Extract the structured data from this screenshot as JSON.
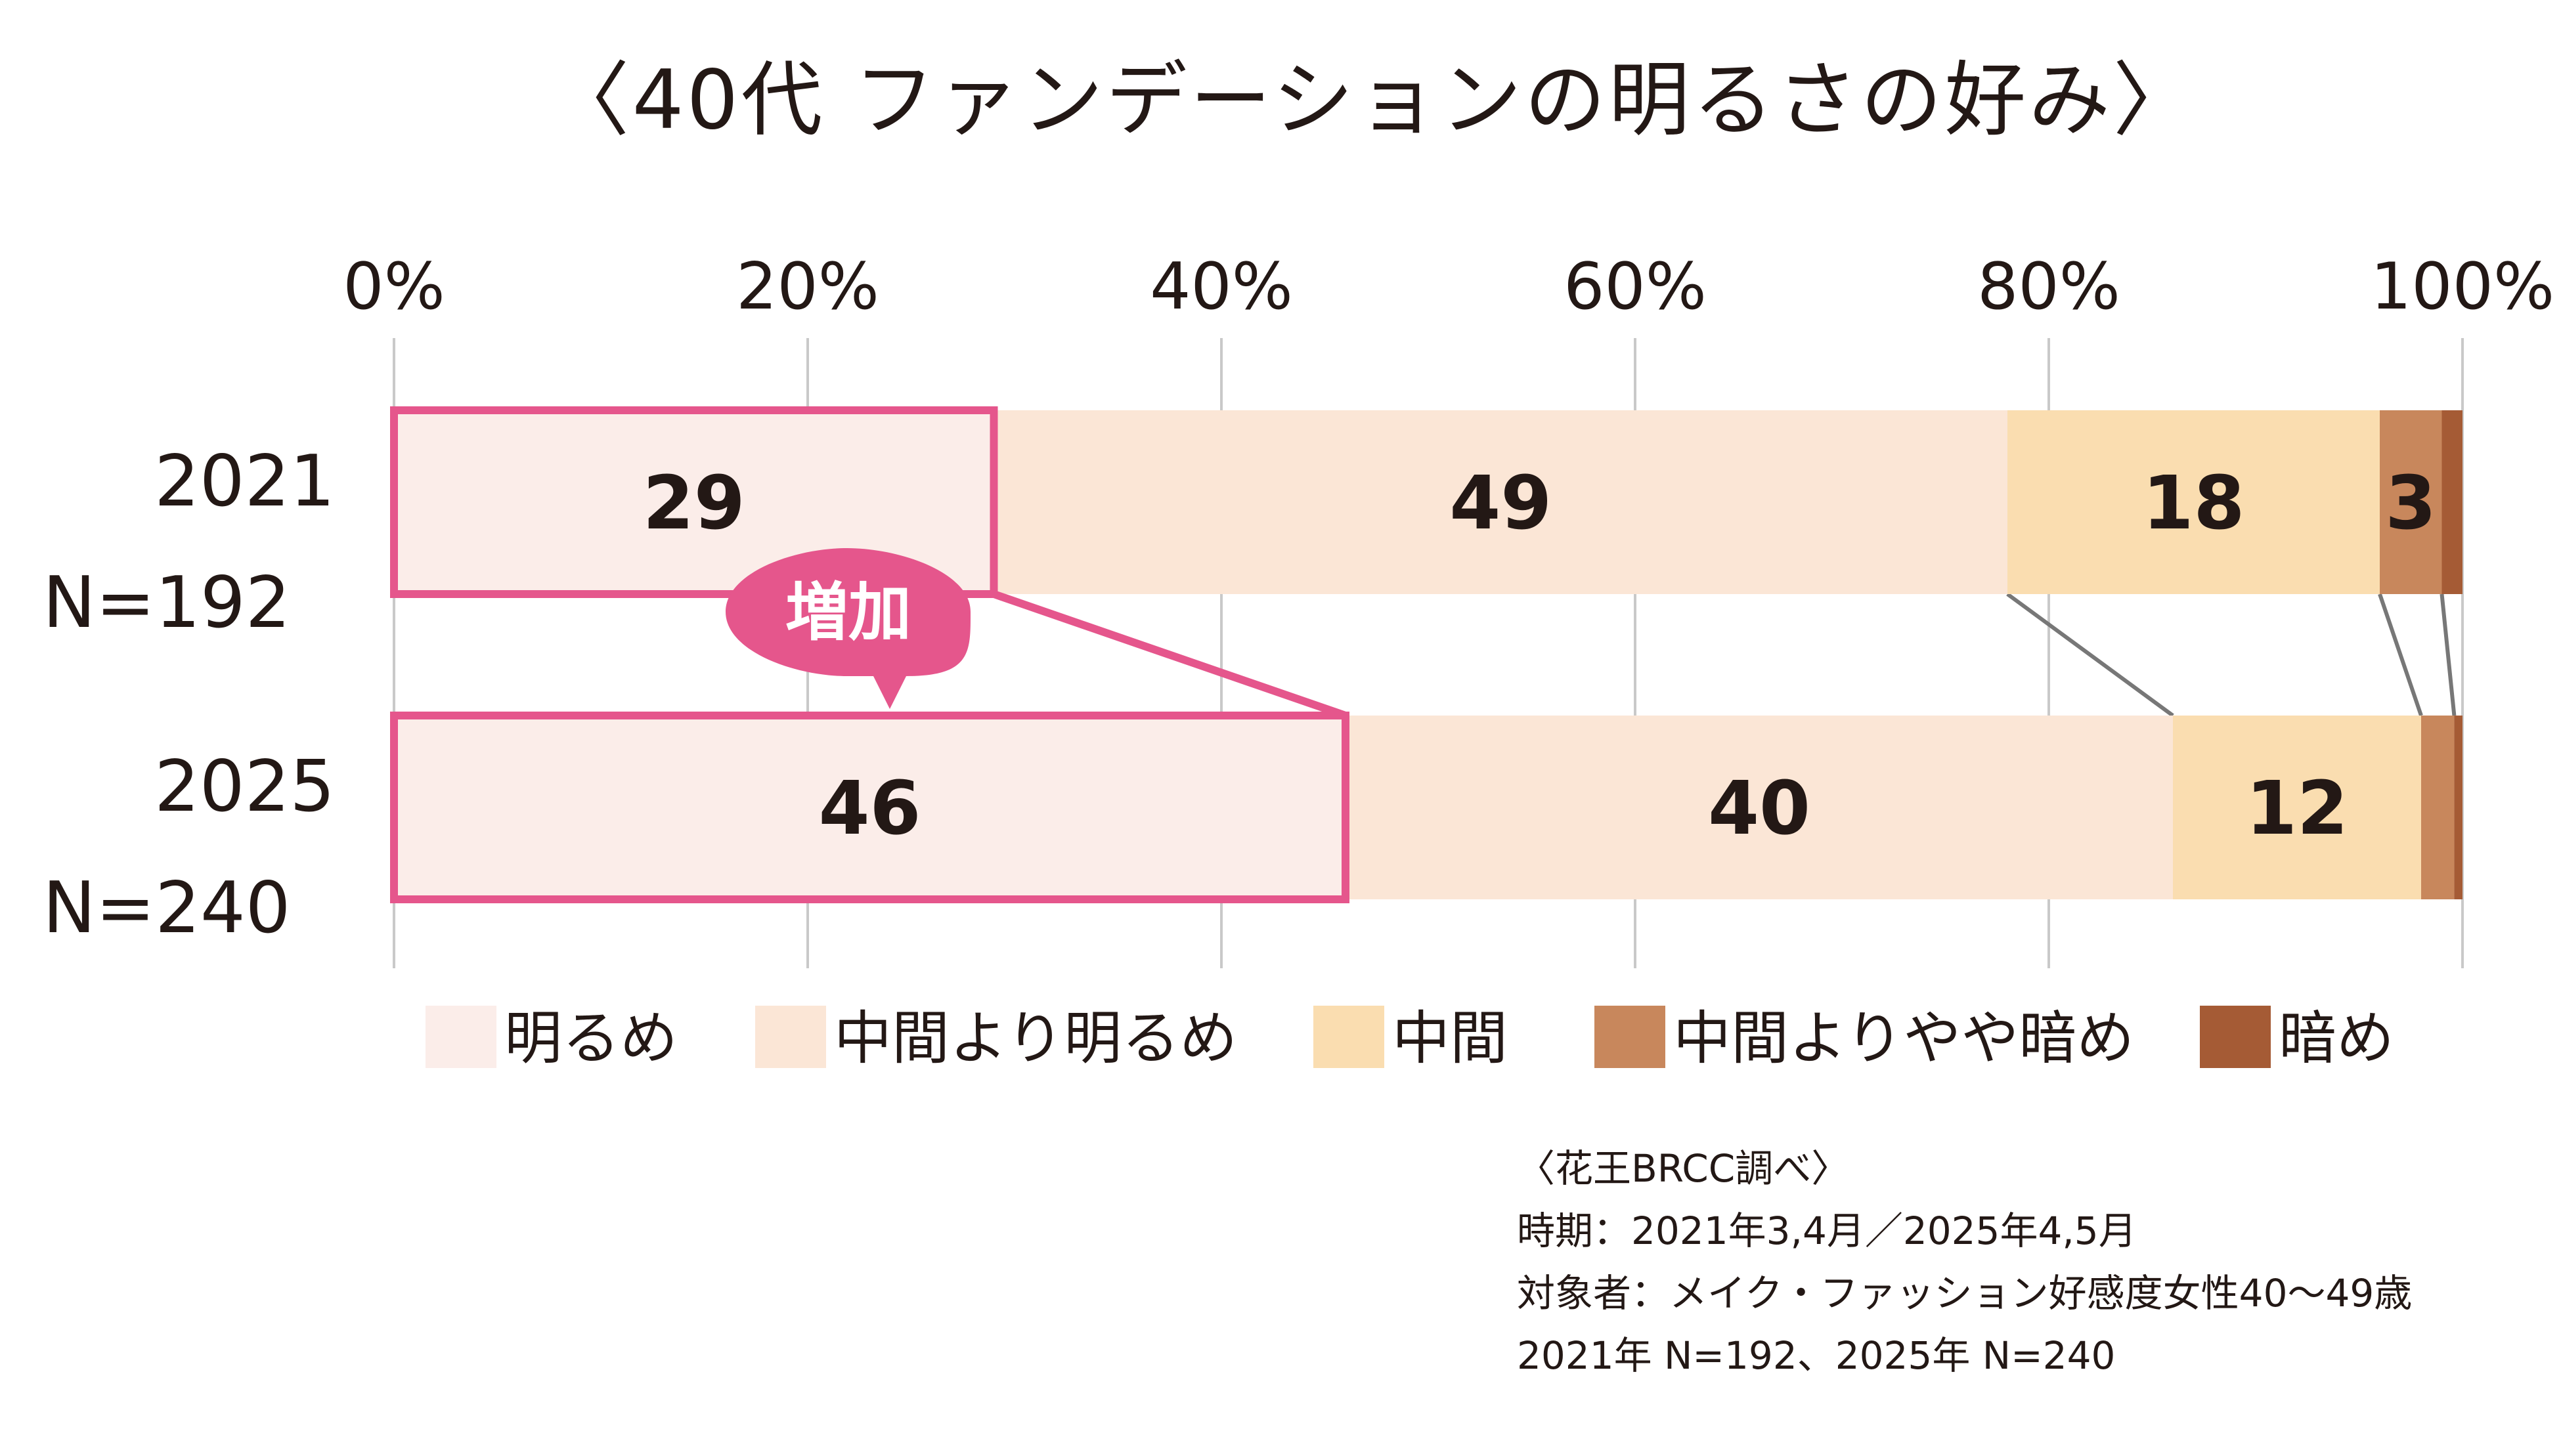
{
  "title": "〈40代 ファンデーションの明るさの好み〉",
  "chart_data": {
    "type": "bar",
    "orientation": "horizontal-stacked",
    "title": "〈40代 ファンデーションの明るさの好み〉",
    "x_ticks": [
      "0%",
      "20%",
      "40%",
      "60%",
      "80%",
      "100%"
    ],
    "xlim": [
      0,
      100
    ],
    "categories": [
      {
        "year": "2021",
        "n": "N=192"
      },
      {
        "year": "2025",
        "n": "N=240"
      }
    ],
    "series": [
      {
        "name": "明るめ",
        "color": "#FBEDE9",
        "values": [
          29,
          46
        ],
        "labels": [
          "29",
          "46"
        ]
      },
      {
        "name": "中間より明るめ",
        "color": "#FBE6D6",
        "values": [
          49,
          40
        ],
        "labels": [
          "49",
          "40"
        ]
      },
      {
        "name": "中間",
        "color": "#FADDB0",
        "values": [
          18,
          12
        ],
        "labels": [
          "18",
          "12"
        ]
      },
      {
        "name": "中間よりやや暗め",
        "color": "#C8875C",
        "values": [
          3,
          1.6
        ],
        "labels": [
          "3",
          ""
        ]
      },
      {
        "name": "暗め",
        "color": "#A55B35",
        "values": [
          1,
          0.4
        ],
        "labels": [
          "",
          ""
        ]
      }
    ],
    "highlight": {
      "series": "明るめ",
      "color": "#E5568C",
      "callout": "増加"
    }
  },
  "source": [
    "〈花王BRCC調べ〉",
    "時期：2021年3,4月／2025年4,5月",
    "対象者：メイク・ファッション好感度女性40〜49歳",
    "2021年 N=192、2025年 N=240"
  ]
}
